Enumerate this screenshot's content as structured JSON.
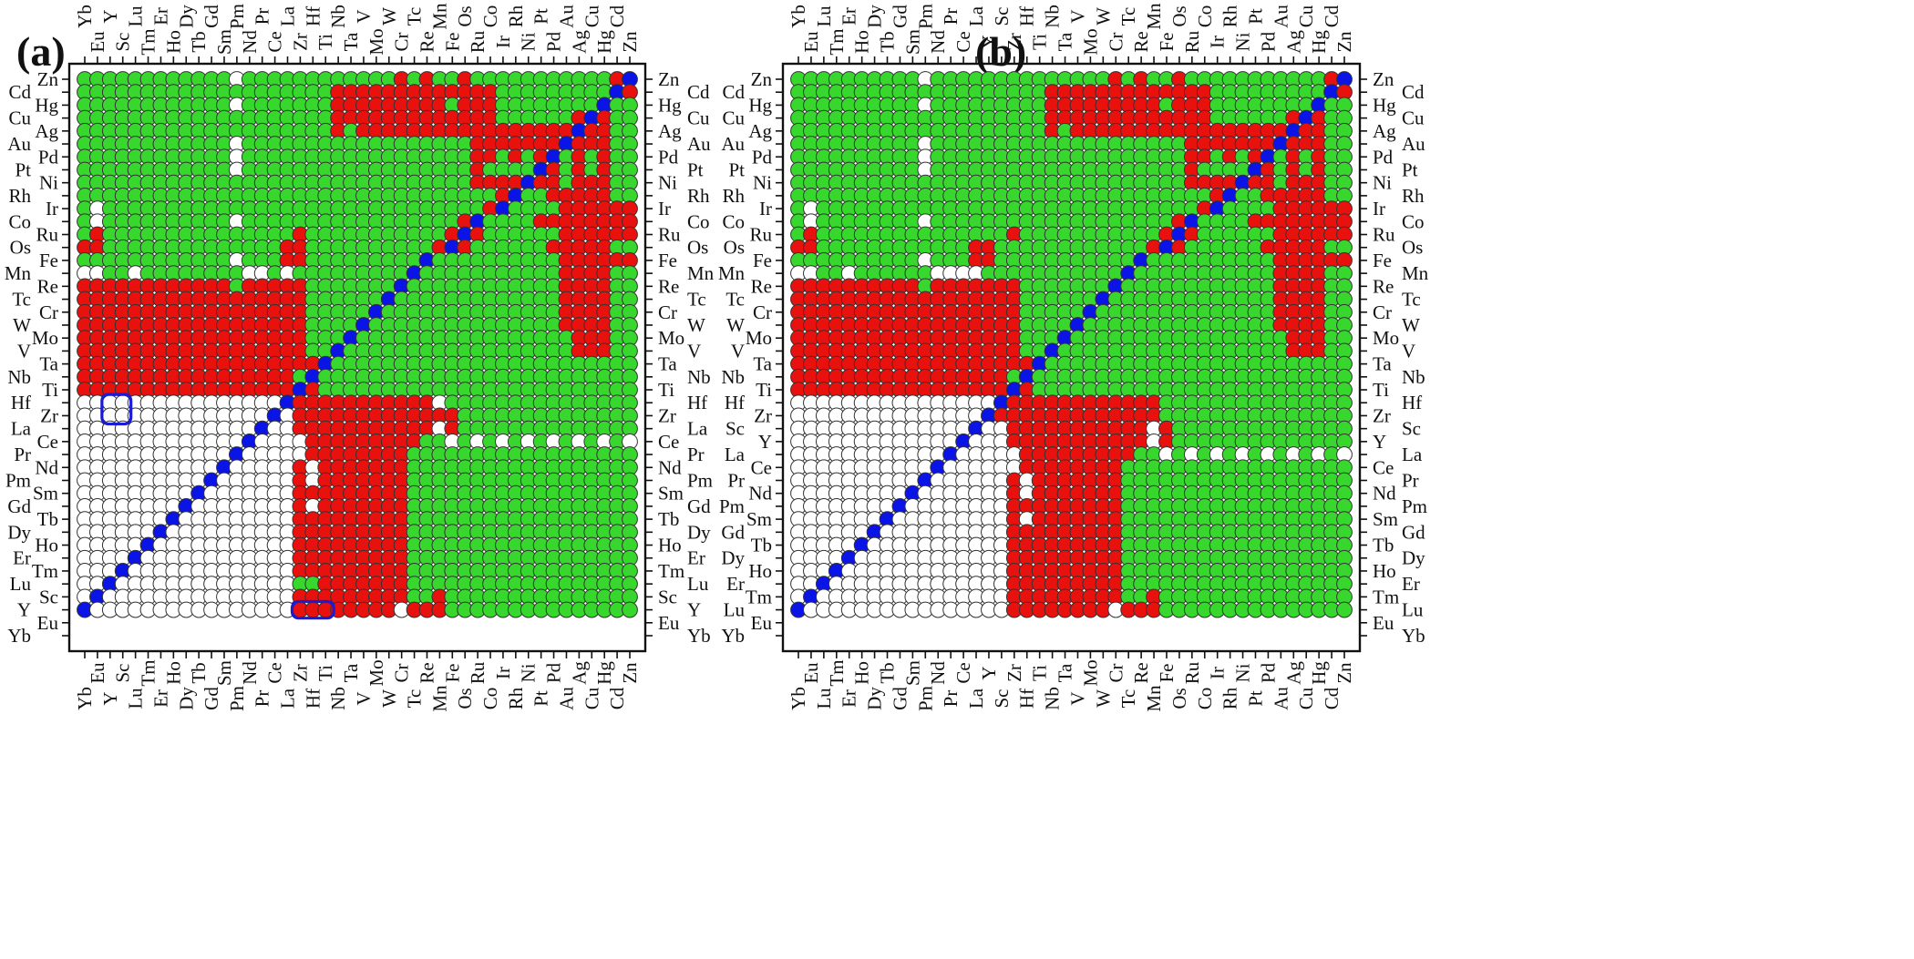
{
  "chart_data": [
    {
      "type": "heatmap",
      "panel_label": "(a)",
      "elements": [
        "Yb",
        "Eu",
        "Y",
        "Sc",
        "Lu",
        "Tm",
        "Er",
        "Ho",
        "Dy",
        "Tb",
        "Gd",
        "Sm",
        "Pm",
        "Nd",
        "Pr",
        "Ce",
        "La",
        "Zr",
        "Hf",
        "Ti",
        "Nb",
        "Ta",
        "V",
        "Mo",
        "W",
        "Cr",
        "Tc",
        "Re",
        "Mn",
        "Fe",
        "Os",
        "Ru",
        "Co",
        "Ir",
        "Rh",
        "Ni",
        "Pt",
        "Pd",
        "Au",
        "Ag",
        "Cu",
        "Hg",
        "Cd",
        "Zn"
      ],
      "cell_codes": {
        "W": "white (no data)",
        "R": "red",
        "G": "green",
        "B": "blue (diagonal)"
      },
      "rows_top_to_bottom": [
        "GGGGGGGGGGGGWGGGGGGGGGGGGRGRGGRGGGGGGGGGGGRB",
        "GGGGGGGGGGGGGGGGGGGGRRRRRRRRRRRRRGGGGGGGGGBR",
        "GGGGGGGGGGGGWGGGGGGGRRRRRRRRRGRRRGGGGGGGGBGG",
        "GGGGGGGGGGGGGGGGGGGGRRRRRRRRRRRRRGGGGGGRBRGG",
        "GGGGGGGGGGGGGGGGGGGGRGRRRRRRRRRRRRRRRRRBRRGG",
        "GGGGGGGGGGGGWGGGGGGGGGGGGGGGGGGRRRRRRRBRRRGG",
        "GGGGGGGGGGGGWGGGGGGGGGGGGGGGGGGRRGRGRBGRGRGG",
        "GGGGGGGGGGGGWGGGGGGGGGGGGGGGGGGRGGGGBRGRGRGG",
        "GGGGGGGGGGGGGGGGGGGGGGGGGGGGGGGRRRRBRRGRRRGG",
        "GGGGGGGGGGGGGGGGGGGGGGGGGGGGGGGGGRBGGRRRRRGG",
        "GWGGGGGGGGGGGGGGGGGGGGGGGGGGGGGGRBGGGGRRRRRR",
        "GWGGGGGGGGGGWGGGGGGGGGGGGGGGGGRBGGGGRRRRRRRR",
        "GRGGGGGGGGGGGGGGGRGGGGGGGGGGGRBRGGGGGGRRRRRR",
        "RRGGGGGGGGGGGGGGRRGGGGGGGGGGRBRGGGGGGRRRRRGG",
        "GGGGGGGGGGGGWGGGRRGGGGGGGGGBGGGGGGGGGGRRRRRR",
        "WWGGWGGGGGGGGWWGWGGGGGGGGGBGGGGGGGGGGGRRRRGG",
        "RRRRRRRRRRRRGRRRRRGGGGGGGBGGGGGGGGGGGGRRRRGG",
        "RRRRRRRRRRRRRRRRRRGGGGGGBGGGGGGGGGGGGGRRRRGG",
        "RRRRRRRRRRRRRRRRRRGGGGGBGGGGGGGGGGGGGGRRRRGG",
        "RRRRRRRRRRRRRRRRRRGGGGBGGGGGGGGGGGGGGGRRRRGG",
        "RRRRRRRRRRRRRRRRRRGGGBGGGGGGGGGGGGGGGGGRRRGG",
        "RRRRRRRRRRRRRRRRRRGGBGGGGGGGGGGGGGGGGGGRRRGG",
        "RRRRRRRRRRRRRRRRRRRBGGGGGGGGGGGGGGGGGGGGGGGG",
        "RRRRRRRRRRRRRRRRRGBGGGGGGGGGGGGGGGGGGGGGGGGG",
        "RRRRRRRRRRRRRRRRRBRGGGGGGGGGGGGGGGGGGGGGGGGG",
        "WWWWWWWWWWWWWWWWBRRRRRRRRRRRWGGGGGGGGGGGGGGG",
        "WWWWWWWWWWWWWWWBWRRRRRRRRRRRRRGGGGGGGGGGGGGG",
        "WWWWWWWWWWWWWWBWWRRRRRRRRRRRWRGGGGGGGGGGGGGG",
        "WWWWWWWWWWWWWBWWWWRRRRRRRRRGGWGWGWGWGWGWGWGW",
        "WWWWWWWWWWWWBWWWWWRRRRRRRRGGGGGGGGGGGGGGGGGG",
        "WWWWWWWWWWWBWWWWWRWRRRRRRRGGGGGGGGGGGGGGGGGG",
        "WWWWWWWWWWBWWWWWWRWRRRRRRRGGGGGGGGGGGGGGGGGG",
        "WWWWWWWWWBWWWWWWWRRRRRRRRRGGGGGGGGGGGGGGGGGG",
        "WWWWWWWWBWWWWWWWWRWRRRRRRRGGGGGGGGGGGGGGGGGG",
        "WWWWWWWBWWWWWWWWWRRRRRRRRRGGGGGGGGGGGGGGGGGG",
        "WWWWWWBWWWWWWWWWWRRRRRRRRRGGGGGGGGGGGGGGGGGG",
        "WWWWWBWWWWWWWWWWWRRRRRRRRRGGGGGGGGGGGGGGGGGG",
        "WWWWBWWWWWWWWWWWWRRRRRRRRRGGGGGGGGGGGGGGGGGG",
        "WWWBWWWWWWWWWWWWWRRRRRRRRRGGGGGGGGGGGGGGGGGG",
        "WWBWWWWWWWWWWWWWWGGRRRRRRRGGGGGGGGGGGGGGGGGG",
        "WBWWWWWWWWWWWWWWWRRRRRRRRRGGRGGGGGGGGGGGGGGG",
        "BWWWWWWWWWWWWWWWWRRRRRRRRWRRRGGGGGGGGGGGGGGG"
      ],
      "highlight_boxes": [
        {
          "rows": [
            "Hf",
            "Zr"
          ],
          "cols": [
            "Y",
            "Sc"
          ]
        },
        {
          "rows": [
            "Y"
          ],
          "cols": [
            "Zr",
            "Hf",
            "Ti"
          ]
        }
      ],
      "grid": false,
      "legend": "none"
    },
    {
      "type": "heatmap",
      "panel_label": "(b)",
      "elements": [
        "Yb",
        "Eu",
        "Lu",
        "Tm",
        "Er",
        "Ho",
        "Dy",
        "Tb",
        "Gd",
        "Sm",
        "Pm",
        "Nd",
        "Pr",
        "Ce",
        "La",
        "Y",
        "Sc",
        "Zr",
        "Hf",
        "Ti",
        "Nb",
        "Ta",
        "V",
        "Mo",
        "W",
        "Cr",
        "Tc",
        "Re",
        "Mn",
        "Fe",
        "Os",
        "Ru",
        "Co",
        "Ir",
        "Rh",
        "Ni",
        "Pt",
        "Pd",
        "Au",
        "Ag",
        "Cu",
        "Hg",
        "Cd",
        "Zn"
      ],
      "cell_codes": {
        "W": "white (no data)",
        "R": "red",
        "G": "green",
        "B": "blue (diagonal)"
      },
      "rows_top_to_bottom": [
        "GGGGGGGGGGWGGGGGGGGGGGGGGRGRGGRGGGGGGGGGGGRB",
        "GGGGGGGGGGGGGGGGGGGGRRRRRRRRRRRRRGGGGGGGGGBR",
        "GGGGGGGGGGWGGGGGGGGGRRRRRRRRRGRRRGGGGGGGGBGG",
        "GGGGGGGGGGGGGGGGGGGGRRRRRRRRRRRRRGGGGGGRBRGG",
        "GGGGGGGGGGGGGGGGGGGGRGRRRRRRRRRRRRRRRRRBRRGG",
        "GGGGGGGGGGWGGGGGGGGGGGGGGGGGGGGRRRRRRRBRRRGG",
        "GGGGGGGGGGWGGGGGGGGGGGGGGGGGGGGRRGRGRBGRGRGG",
        "GGGGGGGGGGWGGGGGGGGGGGGGGGGGGGGRGGGGBRGRGRGG",
        "GGGGGGGGGGGGGGGGGGGGGGGGGGGGGGGRRRRBRRGRRRGG",
        "GGGGGGGGGGGGGGGGGGGGGGGGGGGGGGGGGRBGGRRRRRGG",
        "GWGGGGGGGGGGGGGGGGGGGGGGGGGGGGGGRBGGGGRRRRRR",
        "GWGGGGGGGGWGGGGGGGGGGGGGGGGGGGRBGGGGRRRRRRRR",
        "GRGGGGGGGGGGGGGGGRGGGGGGGGGGGRBRGGGGGGRRRRRR",
        "RRGGGGGGGGGGGGRRGGGGGGGGGGGGRBRGGGGGGRRRRRGG",
        "GGGGGGGGGGWGGGRRGGGGGGGGGGGBGGGGGGGGGGRRRRRR",
        "WWGGWGGGGGGWWWWGGGGGGGGGGGBGGGGGGGGGGGRRRRGG",
        "RRRRRRRRRRGRRRRRRRGGGGGGGBGGGGGGGGGGGGRRRRGG",
        "RRRRRRRRRRRRRRRRRRGGGGGGBGGGGGGGGGGGGGRRRRGG",
        "RRRRRRRRRRRRRRRRRRGGGGGBGGGGGGGGGGGGGGRRRRGG",
        "RRRRRRRRRRRRRRRRRRGGGGBGGGGGGGGGGGGGGGRRRRGG",
        "RRRRRRRRRRRRRRRRRRGGGBGGGGGGGGGGGGGGGGGRRRGG",
        "RRRRRRRRRRRRRRRRRRGGBGGGGGGGGGGGGGGGGGGRRRGG",
        "RRRRRRRRRRRRRRRRRRRBGGGGGGGGGGGGGGGGGGGGGGGG",
        "RRRRRRRRRRRRRRRRRGBGGGGGGGGGGGGGGGGGGGGGGGGG",
        "RRRRRRRRRRRRRRRRRBRGGGGGGGGGGGGGGGGGGGGGGGGG",
        "WWWWWWWWWWWWWWWWBRRRRRRRRRRRRGGGGGGGGGGGGGGG",
        "WWWWWWWWWWWWWWWBRRRRRRRRRRRRRGGGGGGGGGGGGGGG",
        "WWWWWWWWWWWWWWBWWRRRRRRRRRRRWRGGGGGGGGGGGGGG",
        "WWWWWWWWWWWWWBWWWRRRRRRRRRRRWRGGGGGGGGGGGGGG",
        "WWWWWWWWWWWWBWWWWWRRRRRRRRRGGWGWGWGWGWGWGWGW",
        "WWWWWWWWWWWBWWWWWWRRRRRRRRGGGGGGGGGGGGGGGGGG",
        "WWWWWWWWWWBWWWWWWRWRRRRRRRGGGGGGGGGGGGGGGGGG",
        "WWWWWWWWWBWWWWWWWRWRRRRRRRGGGGGGGGGGGGGGGGGG",
        "WWWWWWWWBWWWWWWWWRRRRRRRRRGGGGGGGGGGGGGGGGGG",
        "WWWWWWWBWWWWWWWWWRWRRRRRRRGGGGGGGGGGGGGGGGGG",
        "WWWWWWBWWWWWWWWWWRRRRRRRRRGGGGGGGGGGGGGGGGGG",
        "WWWWWBWWWWWWWWWWWRRRRRRRRRGGGGGGGGGGGGGGGGGG",
        "WWWWBWWWWWWWWWWWWRRRRRRRRRGGGGGGGGGGGGGGGGGG",
        "WWWBWWWWWWWWWWWWWRRRRRRRRRGGGGGGGGGGGGGGGGGG",
        "WWBWWWWWWWWWWWWWWRRRRRRRRRGGGGGGGGGGGGGGGGGG",
        "WBWWWWWWWWWWWWWWWRRRRRRRRRGGRGGGGGGGGGGGGGGG",
        "BWWWWWWWWWWWWWWWWRRRRRRRRWRRRGGGGGGGGGGGGGGG"
      ],
      "highlight_boxes": [],
      "grid": false,
      "legend": "none"
    }
  ],
  "colors": {
    "red": "#e8110e",
    "green": "#37d72e",
    "blue": "#0a14e6",
    "white": "#ffffff",
    "outline": "#333333",
    "axis": "#111111",
    "box": "#1b1bd6"
  }
}
